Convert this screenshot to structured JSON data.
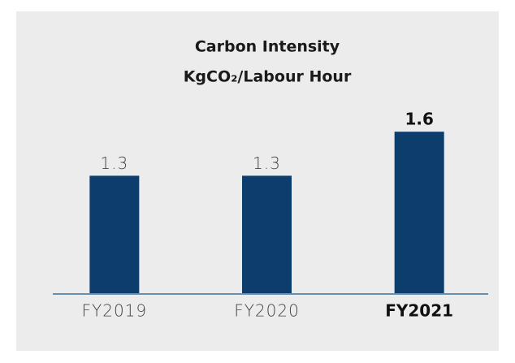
{
  "chart_data": {
    "type": "bar",
    "title": "Carbon Intensity",
    "subtitle": "KgCO₂/Labour Hour",
    "categories": [
      "FY2019",
      "FY2020",
      "FY2021"
    ],
    "values": [
      1.3,
      1.3,
      1.6
    ],
    "color": "#0d3d6c",
    "ylim": [
      0.5,
      1.85
    ],
    "highlight_index": 2
  }
}
